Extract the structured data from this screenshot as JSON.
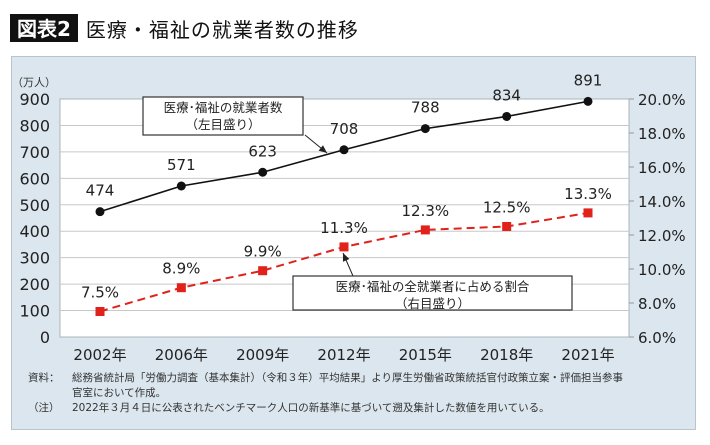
{
  "header": {
    "badge": "図表2",
    "title": "医療・福祉の就業者数の推移"
  },
  "notes": [
    {
      "label": "資料：",
      "text": "総務省統計局「労働力調査（基本集計）（令和３年）平均結果」より厚生労働省政策統括官付政策立案・評価担当参事"
    },
    {
      "label": "",
      "text": "官室において作成。"
    },
    {
      "label": "（注）",
      "text": "2022年３月４日に公表されたベンチマーク人口の新基準に基づいて遡及集計した数値を用いている。"
    }
  ],
  "chart_data": {
    "type": "line",
    "title": "医療・福祉の就業者数の推移",
    "categories": [
      "2002年",
      "2006年",
      "2009年",
      "2012年",
      "2015年",
      "2018年",
      "2021年"
    ],
    "series": [
      {
        "name": "医療・福祉の就業者数（左目盛り）",
        "axis": "left",
        "values": [
          474,
          571,
          623,
          708,
          788,
          834,
          891
        ],
        "labels": [
          "474",
          "571",
          "623",
          "708",
          "788",
          "834",
          "891"
        ],
        "color": "#111111",
        "style": "solid",
        "marker": "circle"
      },
      {
        "name": "医療・福祉の全就業者に占める割合（右目盛り）",
        "axis": "right",
        "values": [
          7.5,
          8.9,
          9.9,
          11.3,
          12.3,
          12.5,
          13.3
        ],
        "labels": [
          "7.5%",
          "8.9%",
          "9.9%",
          "11.3%",
          "12.3%",
          "12.5%",
          "13.3%"
        ],
        "color": "#e0221b",
        "style": "dashed",
        "marker": "square"
      }
    ],
    "left_axis": {
      "unit_label": "（万人）",
      "ylim": [
        0,
        900
      ],
      "ticks": [
        "0",
        "100",
        "200",
        "300",
        "400",
        "500",
        "600",
        "700",
        "800",
        "900"
      ]
    },
    "right_axis": {
      "ylim": [
        6.0,
        20.0
      ],
      "ticks": [
        "6.0%",
        "8.0%",
        "10.0%",
        "12.0%",
        "14.0%",
        "16.0%",
        "18.0%",
        "20.0%"
      ]
    },
    "callouts": [
      {
        "series": 0,
        "lines": [
          "医療･福祉の就業者数",
          "（左目盛り）"
        ],
        "target_index": 3
      },
      {
        "series": 1,
        "lines": [
          "医療･福祉の全就業者に占める割合",
          "（右目盛り）"
        ],
        "target_index": 3
      }
    ],
    "grid": true,
    "legend": "callout-boxes"
  }
}
